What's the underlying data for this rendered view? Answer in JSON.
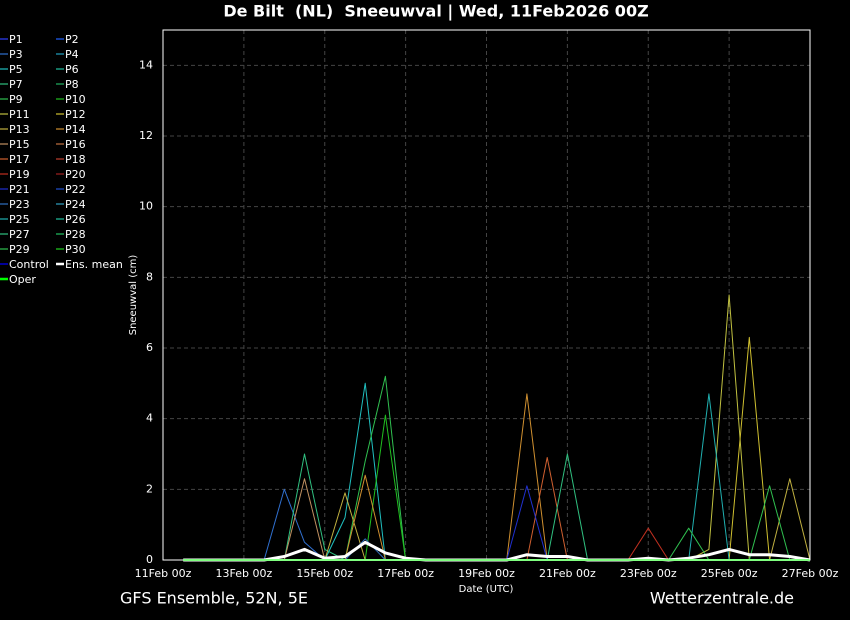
{
  "chart_data": {
    "type": "line",
    "title": "De Bilt  (NL)  Sneeuwval | Wed, 11Feb2026 00Z",
    "y_label": "Sneeuwval (cm)",
    "x_label": "Date (UTC)",
    "footer_left": "GFS Ensemble, 52N, 5E",
    "footer_right": "Wetterzentrale.de",
    "grid": true,
    "x": [
      "2026-02-11T12:00Z",
      "2026-02-12T00:00Z",
      "2026-02-12T12:00Z",
      "2026-02-13T00:00Z",
      "2026-02-13T12:00Z",
      "2026-02-14T00:00Z",
      "2026-02-14T12:00Z",
      "2026-02-15T00:00Z",
      "2026-02-15T12:00Z",
      "2026-02-16T00:00Z",
      "2026-02-16T12:00Z",
      "2026-02-17T00:00Z",
      "2026-02-17T12:00Z",
      "2026-02-18T00:00Z",
      "2026-02-18T12:00Z",
      "2026-02-19T00:00Z",
      "2026-02-19T12:00Z",
      "2026-02-20T00:00Z",
      "2026-02-20T12:00Z",
      "2026-02-21T00:00Z",
      "2026-02-21T12:00Z",
      "2026-02-22T00:00Z",
      "2026-02-22T12:00Z",
      "2026-02-23T00:00Z",
      "2026-02-23T12:00Z",
      "2026-02-24T00:00Z",
      "2026-02-24T12:00Z",
      "2026-02-25T00:00Z",
      "2026-02-25T12:00Z",
      "2026-02-26T00:00Z",
      "2026-02-26T12:00Z",
      "2026-02-27T00:00Z"
    ],
    "xlim": [
      "2026-02-11T00:00Z",
      "2026-02-27T00:00Z"
    ],
    "xticks": [
      {
        "value": "2026-02-11T00:00Z",
        "label": "11Feb 00z"
      },
      {
        "value": "2026-02-13T00:00Z",
        "label": "13Feb 00z"
      },
      {
        "value": "2026-02-15T00:00Z",
        "label": "15Feb 00z"
      },
      {
        "value": "2026-02-17T00:00Z",
        "label": "17Feb 00z"
      },
      {
        "value": "2026-02-19T00:00Z",
        "label": "19Feb 00z"
      },
      {
        "value": "2026-02-21T00:00Z",
        "label": "21Feb 00z"
      },
      {
        "value": "2026-02-23T00:00Z",
        "label": "23Feb 00z"
      },
      {
        "value": "2026-02-25T00:00Z",
        "label": "25Feb 00z"
      },
      {
        "value": "2026-02-27T00:00Z",
        "label": "27Feb 00z"
      }
    ],
    "ylim": [
      0,
      15
    ],
    "yticks": [
      0,
      2,
      4,
      6,
      8,
      10,
      12,
      14
    ],
    "series": [
      {
        "name": "P1",
        "color": "#3040ff",
        "values": [
          0,
          0,
          0,
          0,
          0,
          0,
          0,
          0,
          0,
          0,
          0,
          0,
          0,
          0,
          0,
          0,
          0,
          0,
          0,
          0,
          0,
          0,
          0,
          0,
          0,
          0,
          0,
          0,
          0,
          0,
          0,
          0
        ]
      },
      {
        "name": "P2",
        "color": "#2060ff",
        "values": [
          0,
          0,
          0,
          0,
          0,
          0,
          0,
          0,
          0,
          0,
          0,
          0,
          0,
          0,
          0,
          0,
          0,
          0,
          0,
          0,
          0,
          0,
          0,
          0,
          0,
          0,
          0,
          0,
          0,
          0,
          0,
          0
        ]
      },
      {
        "name": "P3",
        "color": "#3070d0",
        "values": [
          0,
          0,
          0,
          0,
          0,
          2,
          0.5,
          0,
          0,
          0,
          0,
          0,
          0,
          0,
          0,
          0,
          0,
          0,
          0,
          0,
          0,
          0,
          0,
          0,
          0,
          0,
          0,
          0,
          0,
          0,
          0,
          0
        ]
      },
      {
        "name": "P4",
        "color": "#20a0c0",
        "values": [
          0,
          0,
          0,
          0,
          0,
          0,
          0,
          0,
          0,
          0,
          0,
          0,
          0,
          0,
          0,
          0,
          0,
          0,
          0,
          0,
          0,
          0,
          0,
          0,
          0,
          0,
          0,
          0,
          0,
          0,
          0,
          0
        ]
      },
      {
        "name": "P5",
        "color": "#20c0c0",
        "values": [
          0,
          0,
          0,
          0,
          0,
          0,
          0,
          0,
          1.2,
          5,
          0,
          0,
          0,
          0,
          0,
          0,
          0,
          0,
          0,
          0,
          0,
          0,
          0,
          0,
          0,
          0,
          0,
          0,
          0,
          0,
          0,
          0
        ]
      },
      {
        "name": "P6",
        "color": "#20c0a0",
        "values": [
          0,
          0,
          0,
          0,
          0,
          0,
          0,
          0,
          0,
          0,
          0,
          0,
          0,
          0,
          0,
          0,
          0,
          0,
          0,
          0,
          0,
          0,
          0,
          0,
          0,
          0,
          0,
          0,
          0,
          0,
          0,
          0
        ]
      },
      {
        "name": "P7",
        "color": "#30c080",
        "values": [
          0,
          0,
          0,
          0,
          0,
          0,
          3,
          0.3,
          0,
          0,
          0,
          0,
          0,
          0,
          0,
          0,
          0,
          0,
          0,
          0,
          0,
          0,
          0,
          0,
          0,
          0,
          0,
          0,
          0,
          0,
          0,
          0
        ]
      },
      {
        "name": "P8",
        "color": "#20b060",
        "values": [
          0,
          0,
          0,
          0,
          0,
          0,
          0,
          0,
          0,
          0,
          0,
          0,
          0,
          0,
          0,
          0,
          0,
          0,
          0,
          0,
          0,
          0,
          0,
          0,
          0,
          0,
          0,
          0,
          0,
          0,
          0,
          0
        ]
      },
      {
        "name": "P9",
        "color": "#30c050",
        "values": [
          0,
          0,
          0,
          0,
          0,
          0,
          0,
          0,
          0,
          2.8,
          5.2,
          0,
          0,
          0,
          0,
          0,
          0,
          0,
          0,
          0,
          0,
          0,
          0,
          0,
          0,
          0,
          0,
          0,
          0,
          0,
          0,
          0
        ]
      },
      {
        "name": "P10",
        "color": "#20c020",
        "values": [
          0,
          0,
          0,
          0,
          0,
          0,
          0,
          0,
          0,
          0,
          4.1,
          0,
          0,
          0,
          0,
          0,
          0,
          0,
          0,
          0,
          0,
          0,
          0,
          0,
          0,
          0,
          0,
          0,
          0,
          0,
          0,
          0
        ]
      },
      {
        "name": "P11",
        "color": "#c0c040",
        "values": [
          0,
          0,
          0,
          0,
          0,
          0,
          0,
          0,
          0,
          0,
          0,
          0,
          0,
          0,
          0,
          0,
          0,
          0,
          0,
          0,
          0,
          0,
          0,
          0,
          0,
          0,
          0.3,
          7.5,
          0,
          0,
          0,
          0
        ]
      },
      {
        "name": "P12",
        "color": "#d0c030",
        "values": [
          0,
          0,
          0,
          0,
          0,
          0,
          0,
          0,
          0,
          0,
          0,
          0,
          0,
          0,
          0,
          0,
          0,
          0,
          0,
          0,
          0,
          0,
          0,
          0,
          0,
          0,
          0,
          0,
          6.3,
          0,
          0,
          0
        ]
      },
      {
        "name": "P13",
        "color": "#c0b040",
        "values": [
          0,
          0,
          0,
          0,
          0,
          0,
          0,
          0,
          1.9,
          0,
          0,
          0,
          0,
          0,
          0,
          0,
          0,
          0,
          0,
          0,
          0,
          0,
          0,
          0,
          0,
          0,
          0,
          0,
          0,
          0,
          2.3,
          0
        ]
      },
      {
        "name": "P14",
        "color": "#d09030",
        "values": [
          0,
          0,
          0,
          0,
          0,
          0,
          0,
          0,
          0,
          2.4,
          0,
          0,
          0,
          0,
          0,
          0,
          0,
          4.7,
          0,
          0,
          0,
          0,
          0,
          0,
          0,
          0,
          0,
          0,
          0,
          0,
          0,
          0
        ]
      },
      {
        "name": "P15",
        "color": "#c09060",
        "values": [
          0,
          0,
          0,
          0,
          0,
          0,
          2.3,
          0,
          0,
          0,
          0,
          0,
          0,
          0,
          0,
          0,
          0,
          0,
          0,
          0,
          0,
          0,
          0,
          0,
          0,
          0,
          0,
          0,
          0,
          0,
          0,
          0
        ]
      },
      {
        "name": "P16",
        "color": "#c07040",
        "values": [
          0,
          0,
          0,
          0,
          0,
          0,
          0,
          0,
          0,
          0,
          0,
          0,
          0,
          0,
          0,
          0,
          0,
          0,
          0,
          0,
          0,
          0,
          0,
          0,
          0,
          0,
          0,
          0,
          0,
          0,
          0,
          0
        ]
      },
      {
        "name": "P17",
        "color": "#d06030",
        "values": [
          0,
          0,
          0,
          0,
          0,
          0,
          0,
          0,
          0,
          0,
          0,
          0,
          0,
          0,
          0,
          0,
          0,
          0,
          2.9,
          0,
          0,
          0,
          0,
          0,
          0,
          0,
          0,
          0,
          0,
          0,
          0,
          0
        ]
      },
      {
        "name": "P18",
        "color": "#c04030",
        "values": [
          0,
          0,
          0,
          0,
          0,
          0,
          0,
          0,
          0,
          0,
          0,
          0,
          0,
          0,
          0,
          0,
          0,
          0,
          0,
          0,
          0,
          0,
          0,
          0,
          0,
          0,
          0,
          0,
          0,
          0,
          0,
          0
        ]
      },
      {
        "name": "P19",
        "color": "#c03020",
        "values": [
          0,
          0,
          0,
          0,
          0,
          0,
          0,
          0,
          0,
          0,
          0,
          0,
          0,
          0,
          0,
          0,
          0,
          0,
          0,
          0,
          0,
          0,
          0,
          0.9,
          0,
          0,
          0,
          0,
          0,
          0,
          0,
          0
        ]
      },
      {
        "name": "P20",
        "color": "#a02020",
        "values": [
          0,
          0,
          0,
          0,
          0,
          0,
          0,
          0,
          0,
          0,
          0,
          0,
          0,
          0,
          0,
          0,
          0,
          0,
          0,
          0,
          0,
          0,
          0,
          0,
          0,
          0,
          0,
          0,
          0,
          0,
          0,
          0
        ]
      },
      {
        "name": "P21",
        "color": "#2030d0",
        "values": [
          0,
          0,
          0,
          0,
          0,
          0,
          0,
          0,
          0,
          0,
          0,
          0,
          0,
          0,
          0,
          0,
          0,
          2.1,
          0,
          0,
          0,
          0,
          0,
          0,
          0,
          0,
          0,
          0,
          0,
          0,
          0,
          0
        ]
      },
      {
        "name": "P22",
        "color": "#2050d0",
        "values": [
          0,
          0,
          0,
          0,
          0,
          0,
          0,
          0,
          0,
          0,
          0,
          0,
          0,
          0,
          0,
          0,
          0,
          0,
          0,
          0,
          0,
          0,
          0,
          0,
          0,
          0,
          0,
          0,
          0,
          0,
          0,
          0
        ]
      },
      {
        "name": "P23",
        "color": "#3070c0",
        "values": [
          0,
          0,
          0,
          0,
          0,
          0,
          0,
          0,
          0,
          0.6,
          0,
          0,
          0,
          0,
          0,
          0,
          0,
          0,
          0,
          0,
          0,
          0,
          0,
          0,
          0,
          0,
          0,
          0,
          0,
          0,
          0,
          0
        ]
      },
      {
        "name": "P24",
        "color": "#30a0c0",
        "values": [
          0,
          0,
          0,
          0,
          0,
          0,
          0,
          0,
          0,
          0,
          0,
          0,
          0,
          0,
          0,
          0,
          0,
          0,
          0,
          0,
          0,
          0,
          0,
          0,
          0,
          0,
          0,
          0,
          0,
          0,
          0,
          0
        ]
      },
      {
        "name": "P25",
        "color": "#20b0b0",
        "values": [
          0,
          0,
          0,
          0,
          0,
          0,
          0,
          0,
          0,
          0,
          0,
          0,
          0,
          0,
          0,
          0,
          0,
          0,
          0,
          0,
          0,
          0,
          0,
          0,
          0,
          0,
          4.7,
          0,
          0,
          0,
          0,
          0
        ]
      },
      {
        "name": "P26",
        "color": "#20c0a0",
        "values": [
          0,
          0,
          0,
          0,
          0,
          0,
          0,
          0,
          0,
          0,
          0,
          0,
          0,
          0,
          0,
          0,
          0,
          0,
          0,
          0,
          0,
          0,
          0,
          0,
          0,
          0,
          0,
          0,
          0,
          0,
          0,
          0
        ]
      },
      {
        "name": "P27",
        "color": "#30c080",
        "values": [
          0,
          0,
          0,
          0,
          0,
          0,
          0,
          0,
          0,
          0,
          0,
          0,
          0,
          0,
          0,
          0,
          0,
          0,
          0,
          3,
          0,
          0,
          0,
          0,
          0,
          0,
          0,
          0,
          0,
          0,
          0,
          0
        ]
      },
      {
        "name": "P28",
        "color": "#20c060",
        "values": [
          0,
          0,
          0,
          0,
          0,
          0,
          0,
          0,
          0,
          0,
          0,
          0,
          0,
          0,
          0,
          0,
          0,
          0,
          0,
          0,
          0,
          0,
          0,
          0,
          0,
          0,
          0,
          0,
          0,
          0,
          0,
          0
        ]
      },
      {
        "name": "P29",
        "color": "#30c050",
        "values": [
          0,
          0,
          0,
          0,
          0,
          0,
          0,
          0,
          0,
          0,
          0,
          0,
          0,
          0,
          0,
          0,
          0,
          0,
          0,
          0,
          0,
          0,
          0,
          0,
          0,
          0.9,
          0,
          0,
          0,
          2.1,
          0,
          0
        ]
      },
      {
        "name": "P30",
        "color": "#20d020",
        "values": [
          0,
          0,
          0,
          0,
          0,
          0,
          0,
          0,
          0,
          0,
          0,
          0,
          0,
          0,
          0,
          0,
          0,
          0,
          0,
          0,
          0,
          0,
          0,
          0,
          0,
          0,
          0,
          0,
          0,
          0,
          0,
          0
        ]
      },
      {
        "name": "Control",
        "color": "#0000ff",
        "values": [
          0,
          0,
          0,
          0,
          0,
          0,
          0,
          0,
          0,
          0,
          0,
          0,
          0,
          0,
          0,
          0,
          0,
          0,
          0,
          0,
          0,
          0,
          0,
          0,
          0,
          0,
          0,
          0,
          0,
          0,
          0,
          0
        ]
      },
      {
        "name": "Ens. mean",
        "color": "#ffffff",
        "values": [
          0,
          0,
          0,
          0,
          0,
          0.1,
          0.3,
          0.05,
          0.1,
          0.5,
          0.2,
          0.05,
          0,
          0,
          0,
          0,
          0,
          0.15,
          0.1,
          0.1,
          0,
          0,
          0,
          0.05,
          0,
          0.05,
          0.15,
          0.3,
          0.15,
          0.15,
          0.1,
          0
        ]
      },
      {
        "name": "Oper",
        "color": "#00ff00",
        "values": [
          0,
          0,
          0,
          0,
          0,
          0,
          0,
          0,
          0,
          0,
          0,
          0,
          0,
          0,
          0,
          0,
          0,
          0,
          0,
          0,
          0,
          0,
          0,
          0,
          0,
          0,
          0,
          0,
          0,
          0,
          0,
          0
        ]
      }
    ]
  }
}
